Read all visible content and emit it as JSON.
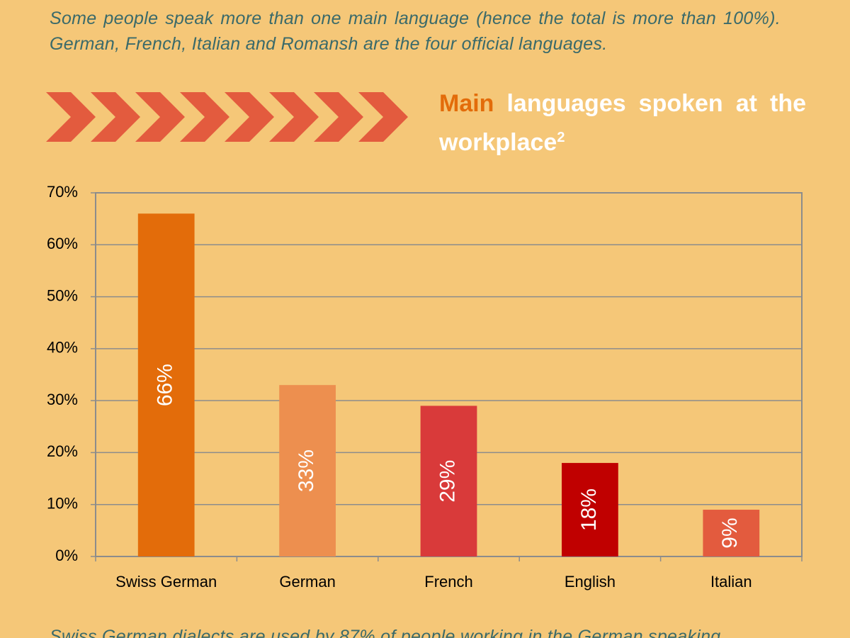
{
  "intro": "Some people speak more than one main language (hence the total is more than 100%). German, French, Italian and Romansh are the four official languages.",
  "chart_data": {
    "type": "bar",
    "title_highlight": "Main",
    "title": "languages spoken at the workplace",
    "title_superscript": "2",
    "categories": [
      "Swiss German",
      "German",
      "French",
      "English",
      "Italian"
    ],
    "values": [
      66,
      33,
      29,
      18,
      9
    ],
    "value_labels": [
      "66%",
      "33%",
      "29%",
      "18%",
      "9%"
    ],
    "colors": [
      "#e36c0a",
      "#ed8f4f",
      "#d93a3a",
      "#c00000",
      "#e35b3e"
    ],
    "ylim": [
      0,
      70
    ],
    "yticks": [
      {
        "value": 0,
        "label": "0%"
      },
      {
        "value": 10,
        "label": "10%"
      },
      {
        "value": 20,
        "label": "20%"
      },
      {
        "value": 30,
        "label": "30%"
      },
      {
        "value": 40,
        "label": "40%"
      },
      {
        "value": 50,
        "label": "50%"
      },
      {
        "value": 60,
        "label": "60%"
      },
      {
        "value": 70,
        "label": "70%"
      }
    ],
    "grid": true
  },
  "footer": "Swiss German dialects are used by 87% of people working in the German speaking"
}
